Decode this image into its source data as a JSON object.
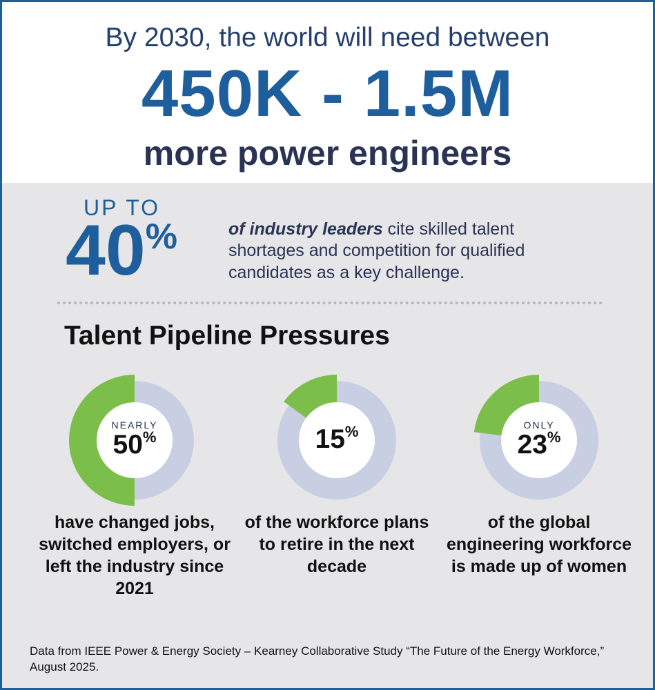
{
  "header": {
    "headline": "By 2030, the world will need between",
    "range": "450K - 1.5M",
    "subhead": "more power engineers"
  },
  "highlight": {
    "prefix": "UP TO",
    "number": "40",
    "percent_sign": "%",
    "lead": "of industry leaders",
    "rest": " cite skilled talent shortages and competition for qualified candidates as a key challenge."
  },
  "section_title": "Talent Pipeline Pressures",
  "chart_data": {
    "type": "pie",
    "title": "Talent Pipeline Pressures",
    "items": [
      {
        "qualifier": "NEARLY",
        "value": 50,
        "label": "50",
        "unit": "%",
        "description": "have changed jobs, switched employers, or left the industry since 2021"
      },
      {
        "qualifier": "",
        "value": 15,
        "label": "15",
        "unit": "%",
        "description": "of the workforce plans to retire in the next decade"
      },
      {
        "qualifier": "ONLY",
        "value": 23,
        "label": "23",
        "unit": "%",
        "description": "of the global engineering workforce is made up of women"
      }
    ],
    "colors": {
      "filled": "#7bbf4a",
      "remaining": "#c8cfe2",
      "center": "#ffffff"
    }
  },
  "footnote": "Data from IEEE Power & Energy Society – Kearney Collaborative Study “The Future of the Energy Workforce,” August 2025."
}
